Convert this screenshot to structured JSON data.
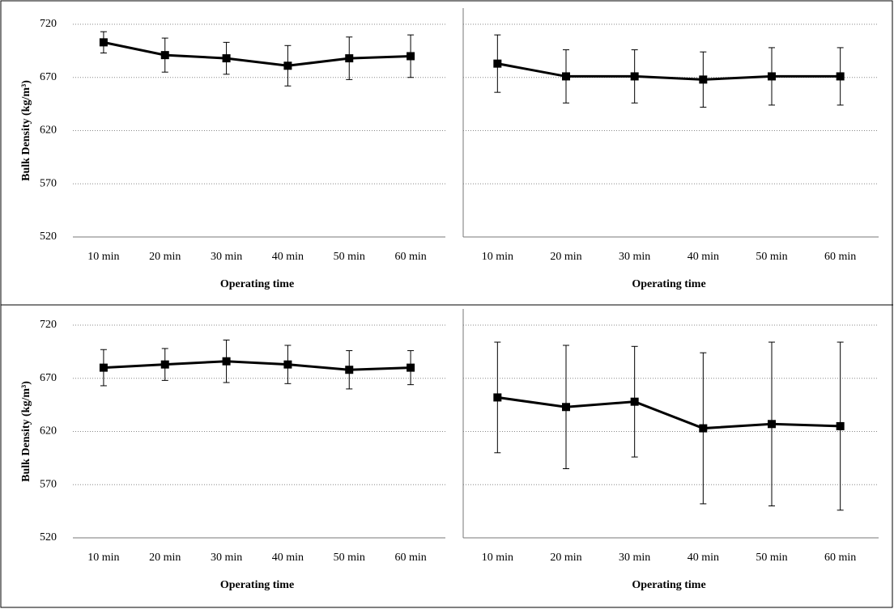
{
  "chart_data": [
    {
      "type": "line",
      "y_label": "Bulk Density (kg/m³)",
      "x_label": "Operating time",
      "categories": [
        "10 min",
        "20 min",
        "30 min",
        "40 min",
        "50 min",
        "60 min"
      ],
      "series": [
        {
          "color": "#000000",
          "values": [
            703,
            691,
            688,
            681,
            688,
            690
          ],
          "errors": [
            10,
            16,
            15,
            19,
            20,
            20
          ]
        }
      ],
      "ylim": [
        520,
        720
      ],
      "yticks": [
        520,
        570,
        620,
        670,
        720
      ],
      "grid": true
    },
    {
      "type": "line",
      "x_label": "Operating time",
      "categories": [
        "10 min",
        "20 min",
        "30 min",
        "40 min",
        "50 min",
        "60 min"
      ],
      "series": [
        {
          "color": "#000000",
          "values": [
            683,
            671,
            671,
            668,
            671,
            671
          ],
          "errors": [
            27,
            25,
            25,
            26,
            27,
            27
          ]
        }
      ],
      "ylim": [
        520,
        720
      ],
      "yticks": [
        520,
        570,
        620,
        670,
        720
      ],
      "grid": true
    },
    {
      "type": "line",
      "y_label": "Bulk Density (kg/m³)",
      "x_label": "Operating time",
      "categories": [
        "10 min",
        "20 min",
        "30 min",
        "40 min",
        "50 min",
        "60 min"
      ],
      "series": [
        {
          "color": "#000000",
          "values": [
            680,
            683,
            686,
            683,
            678,
            680
          ],
          "errors": [
            17,
            15,
            20,
            18,
            18,
            16
          ]
        }
      ],
      "ylim": [
        520,
        720
      ],
      "yticks": [
        520,
        570,
        620,
        670,
        720
      ],
      "grid": true
    },
    {
      "type": "line",
      "x_label": "Operating time",
      "categories": [
        "10 min",
        "20 min",
        "30 min",
        "40 min",
        "50 min",
        "60 min"
      ],
      "series": [
        {
          "color": "#000000",
          "values": [
            652,
            643,
            648,
            623,
            627,
            625
          ],
          "errors": [
            52,
            58,
            52,
            71,
            77,
            79
          ]
        }
      ],
      "ylim": [
        520,
        720
      ],
      "yticks": [
        520,
        570,
        620,
        670,
        720
      ],
      "grid": true
    }
  ]
}
